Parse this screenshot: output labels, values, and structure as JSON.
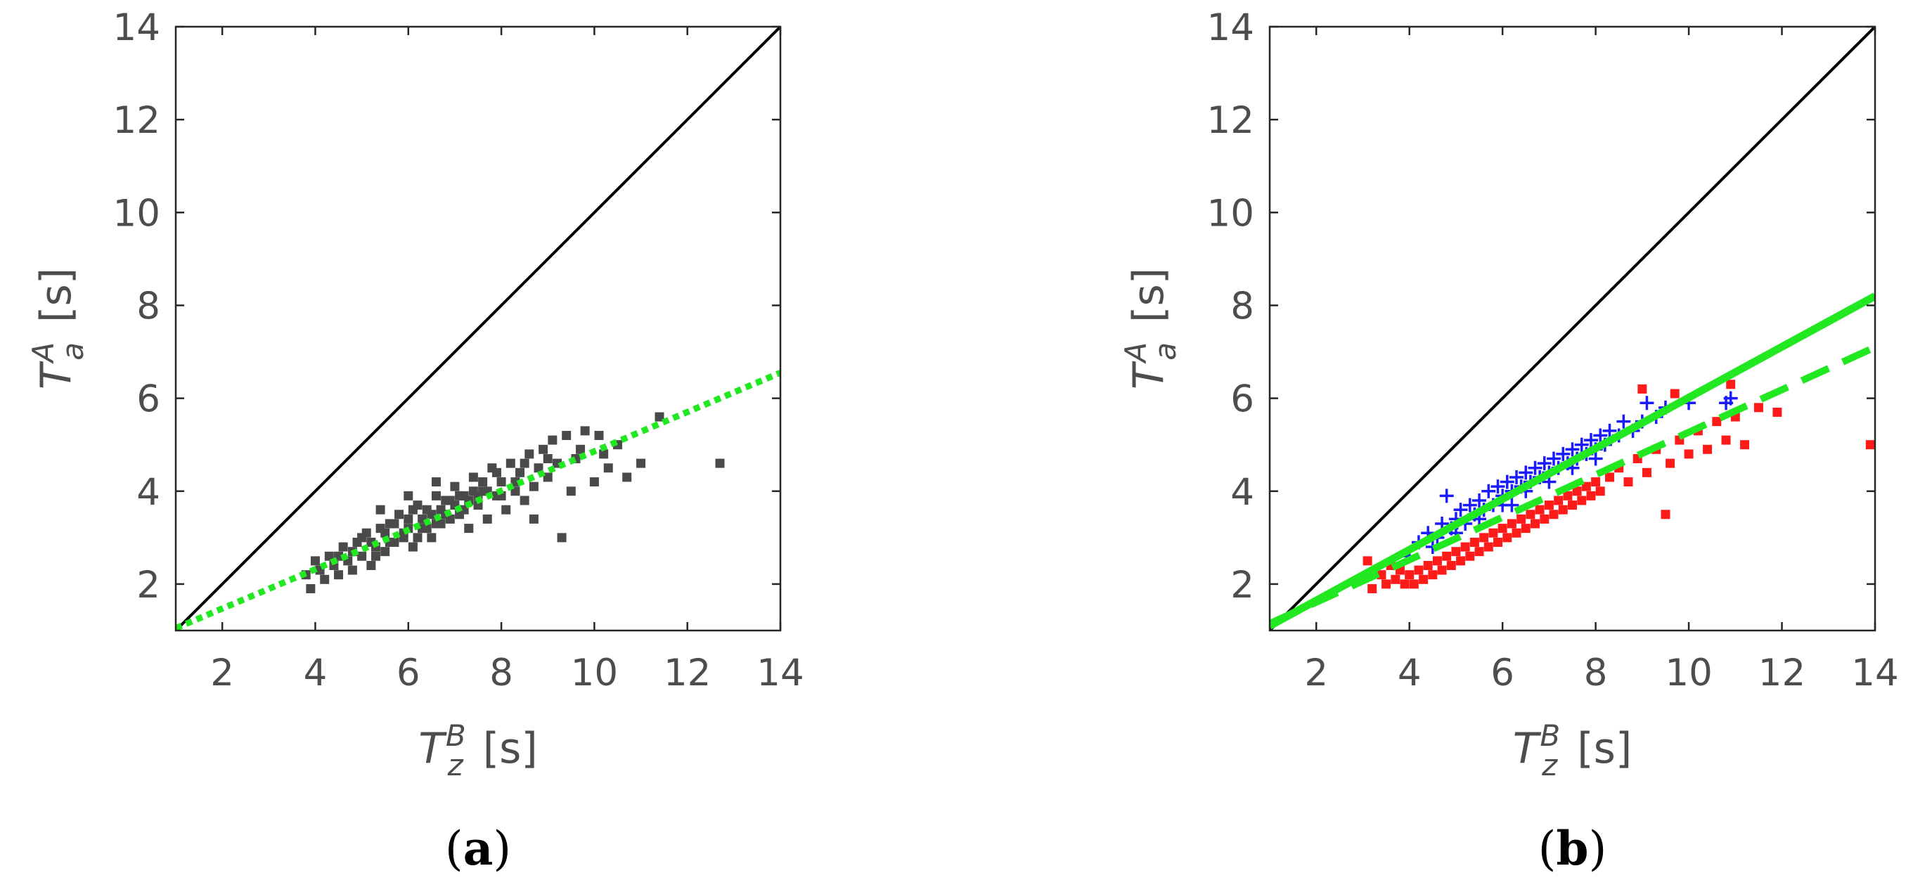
{
  "chart_data": [
    {
      "panel": "(a)",
      "panel_letter": "a",
      "type": "scatter",
      "xlabel": {
        "symbol": "T",
        "subscript": "z",
        "superscript": "B",
        "unit": "[s]"
      },
      "ylabel": {
        "symbol": "T",
        "subscript": "a",
        "superscript": "A",
        "unit": "[s]"
      },
      "xlim": [
        1,
        14
      ],
      "ylim": [
        1,
        14
      ],
      "xticks": [
        "2",
        "4",
        "6",
        "8",
        "10",
        "12",
        "14"
      ],
      "yticks": [
        "2",
        "4",
        "6",
        "8",
        "10",
        "12",
        "14"
      ],
      "grid": false,
      "lines": [
        {
          "style": "solid",
          "color": "#000000",
          "x": [
            1,
            14
          ],
          "y": [
            1,
            14
          ]
        },
        {
          "style": "dotted",
          "color": "#22e822",
          "x": [
            1,
            14
          ],
          "y": [
            1.05,
            6.55
          ]
        }
      ],
      "series": [
        {
          "marker": "square",
          "color": "#4a4a4a",
          "points": [
            [
              3.8,
              2.2
            ],
            [
              3.9,
              1.9
            ],
            [
              4.0,
              2.5
            ],
            [
              4.1,
              2.3
            ],
            [
              4.2,
              2.1
            ],
            [
              4.3,
              2.6
            ],
            [
              4.4,
              2.4
            ],
            [
              4.5,
              2.2
            ],
            [
              4.6,
              2.8
            ],
            [
              4.7,
              2.5
            ],
            [
              4.8,
              2.3
            ],
            [
              4.9,
              2.9
            ],
            [
              5.0,
              2.6
            ],
            [
              5.1,
              3.1
            ],
            [
              5.2,
              2.4
            ],
            [
              5.3,
              2.8
            ],
            [
              5.4,
              3.2
            ],
            [
              5.5,
              2.7
            ],
            [
              5.6,
              3.3
            ],
            [
              5.7,
              2.9
            ],
            [
              5.8,
              3.5
            ],
            [
              5.9,
              3.0
            ],
            [
              6.0,
              3.4
            ],
            [
              6.1,
              2.8
            ],
            [
              6.2,
              3.7
            ],
            [
              6.3,
              3.2
            ],
            [
              6.4,
              3.6
            ],
            [
              6.5,
              3.0
            ],
            [
              6.6,
              3.9
            ],
            [
              6.7,
              3.3
            ],
            [
              6.8,
              3.8
            ],
            [
              6.9,
              3.4
            ],
            [
              7.0,
              4.1
            ],
            [
              7.1,
              3.5
            ],
            [
              7.2,
              3.9
            ],
            [
              7.3,
              3.2
            ],
            [
              7.4,
              4.3
            ],
            [
              7.5,
              3.7
            ],
            [
              7.6,
              4.0
            ],
            [
              7.7,
              3.4
            ],
            [
              7.8,
              4.5
            ],
            [
              7.9,
              3.9
            ],
            [
              8.0,
              4.2
            ],
            [
              8.1,
              3.6
            ],
            [
              8.2,
              4.6
            ],
            [
              8.3,
              4.0
            ],
            [
              8.4,
              4.4
            ],
            [
              8.5,
              3.8
            ],
            [
              8.6,
              4.8
            ],
            [
              8.7,
              4.1
            ],
            [
              8.8,
              4.5
            ],
            [
              8.9,
              4.9
            ],
            [
              9.0,
              4.3
            ],
            [
              9.1,
              5.1
            ],
            [
              9.2,
              4.6
            ],
            [
              9.4,
              5.2
            ],
            [
              9.5,
              4.0
            ],
            [
              9.6,
              4.7
            ],
            [
              9.8,
              5.3
            ],
            [
              10.0,
              4.2
            ],
            [
              10.2,
              4.8
            ],
            [
              10.5,
              5.0
            ],
            [
              10.7,
              4.3
            ],
            [
              11.0,
              4.6
            ],
            [
              11.4,
              5.6
            ],
            [
              12.7,
              4.6
            ],
            [
              5.0,
              3.0
            ],
            [
              5.5,
              3.1
            ],
            [
              6.0,
              3.2
            ],
            [
              6.2,
              3.0
            ],
            [
              6.5,
              3.5
            ],
            [
              6.7,
              3.6
            ],
            [
              7.0,
              3.7
            ],
            [
              7.2,
              3.6
            ],
            [
              7.5,
              3.9
            ],
            [
              7.7,
              4.0
            ],
            [
              5.3,
              2.6
            ],
            [
              5.6,
              2.9
            ],
            [
              5.9,
              3.1
            ],
            [
              6.3,
              3.4
            ],
            [
              6.6,
              3.3
            ],
            [
              6.9,
              3.8
            ],
            [
              7.3,
              3.8
            ],
            [
              7.6,
              4.2
            ],
            [
              8.0,
              3.9
            ],
            [
              8.3,
              4.2
            ],
            [
              4.5,
              2.6
            ],
            [
              4.8,
              2.7
            ],
            [
              5.2,
              2.9
            ],
            [
              5.7,
              3.3
            ],
            [
              6.1,
              3.6
            ],
            [
              6.4,
              3.2
            ],
            [
              6.8,
              3.5
            ],
            [
              7.1,
              3.9
            ],
            [
              7.4,
              4.0
            ],
            [
              7.9,
              4.4
            ],
            [
              9.3,
              3.0
            ],
            [
              8.7,
              3.4
            ],
            [
              9.0,
              4.7
            ],
            [
              8.5,
              4.6
            ],
            [
              9.7,
              4.9
            ],
            [
              10.1,
              5.2
            ],
            [
              10.3,
              4.5
            ],
            [
              5.4,
              3.6
            ],
            [
              6.0,
              3.9
            ],
            [
              6.6,
              4.2
            ]
          ]
        }
      ]
    },
    {
      "panel": "(b)",
      "panel_letter": "b",
      "type": "scatter",
      "xlabel": {
        "symbol": "T",
        "subscript": "z",
        "superscript": "B",
        "unit": "[s]"
      },
      "ylabel": {
        "symbol": "T",
        "subscript": "a",
        "superscript": "A",
        "unit": "[s]"
      },
      "xlim": [
        1,
        14
      ],
      "ylim": [
        1,
        14
      ],
      "xticks": [
        "2",
        "4",
        "6",
        "8",
        "10",
        "12",
        "14"
      ],
      "yticks": [
        "2",
        "4",
        "6",
        "8",
        "10",
        "12",
        "14"
      ],
      "grid": false,
      "lines": [
        {
          "style": "solid",
          "color": "#000000",
          "x": [
            1,
            14
          ],
          "y": [
            1,
            14
          ]
        },
        {
          "style": "solid",
          "color": "#22e822",
          "x": [
            1,
            14
          ],
          "y": [
            1.1,
            8.2
          ]
        },
        {
          "style": "dashed",
          "color": "#22e822",
          "x": [
            1,
            14
          ],
          "y": [
            1.15,
            7.1
          ]
        }
      ],
      "series": [
        {
          "marker": "plus",
          "color": "#1a1aff",
          "points": [
            [
              4.0,
              2.6
            ],
            [
              4.2,
              2.9
            ],
            [
              4.4,
              3.1
            ],
            [
              4.6,
              3.0
            ],
            [
              4.7,
              3.3
            ],
            [
              4.8,
              3.9
            ],
            [
              4.9,
              3.2
            ],
            [
              5.0,
              3.4
            ],
            [
              5.1,
              3.6
            ],
            [
              5.2,
              3.3
            ],
            [
              5.3,
              3.7
            ],
            [
              5.4,
              3.5
            ],
            [
              5.5,
              3.8
            ],
            [
              5.6,
              3.6
            ],
            [
              5.7,
              4.0
            ],
            [
              5.8,
              3.7
            ],
            [
              5.9,
              4.1
            ],
            [
              6.0,
              3.9
            ],
            [
              6.1,
              4.2
            ],
            [
              6.2,
              4.0
            ],
            [
              6.3,
              4.3
            ],
            [
              6.4,
              4.1
            ],
            [
              6.5,
              4.4
            ],
            [
              6.6,
              4.2
            ],
            [
              6.7,
              4.5
            ],
            [
              6.8,
              4.3
            ],
            [
              6.9,
              4.6
            ],
            [
              7.0,
              4.4
            ],
            [
              7.1,
              4.7
            ],
            [
              7.2,
              4.5
            ],
            [
              7.3,
              4.8
            ],
            [
              7.4,
              4.6
            ],
            [
              7.5,
              4.9
            ],
            [
              7.6,
              4.7
            ],
            [
              7.7,
              5.0
            ],
            [
              7.8,
              4.8
            ],
            [
              7.9,
              5.1
            ],
            [
              8.0,
              4.9
            ],
            [
              8.1,
              5.2
            ],
            [
              8.2,
              5.0
            ],
            [
              8.3,
              5.3
            ],
            [
              8.5,
              5.2
            ],
            [
              8.6,
              5.5
            ],
            [
              8.8,
              5.3
            ],
            [
              9.0,
              5.5
            ],
            [
              9.1,
              5.9
            ],
            [
              9.3,
              5.6
            ],
            [
              9.5,
              5.8
            ],
            [
              10.0,
              5.9
            ],
            [
              10.9,
              6.0
            ],
            [
              10.8,
              5.9
            ],
            [
              5.0,
              3.1
            ],
            [
              5.5,
              3.4
            ],
            [
              6.0,
              3.7
            ],
            [
              6.5,
              4.0
            ],
            [
              7.0,
              4.2
            ],
            [
              7.5,
              4.5
            ],
            [
              8.0,
              4.7
            ],
            [
              4.5,
              2.8
            ],
            [
              6.2,
              3.7
            ]
          ]
        },
        {
          "marker": "square",
          "color": "#ff1a1a",
          "points": [
            [
              3.1,
              2.5
            ],
            [
              3.2,
              1.9
            ],
            [
              3.4,
              2.2
            ],
            [
              3.5,
              2.0
            ],
            [
              3.6,
              2.4
            ],
            [
              3.7,
              2.1
            ],
            [
              3.8,
              2.3
            ],
            [
              3.9,
              2.0
            ],
            [
              4.0,
              2.2
            ],
            [
              4.1,
              2.0
            ],
            [
              4.2,
              2.3
            ],
            [
              4.3,
              2.1
            ],
            [
              4.4,
              2.4
            ],
            [
              4.5,
              2.2
            ],
            [
              4.6,
              2.5
            ],
            [
              4.7,
              2.3
            ],
            [
              4.8,
              2.6
            ],
            [
              4.9,
              2.4
            ],
            [
              5.0,
              2.7
            ],
            [
              5.1,
              2.5
            ],
            [
              5.2,
              2.8
            ],
            [
              5.3,
              2.6
            ],
            [
              5.4,
              2.9
            ],
            [
              5.5,
              2.7
            ],
            [
              5.6,
              3.0
            ],
            [
              5.7,
              2.8
            ],
            [
              5.8,
              3.1
            ],
            [
              5.9,
              2.9
            ],
            [
              6.0,
              3.2
            ],
            [
              6.1,
              3.0
            ],
            [
              6.2,
              3.3
            ],
            [
              6.3,
              3.1
            ],
            [
              6.4,
              3.4
            ],
            [
              6.5,
              3.2
            ],
            [
              6.6,
              3.5
            ],
            [
              6.7,
              3.3
            ],
            [
              6.8,
              3.6
            ],
            [
              6.9,
              3.4
            ],
            [
              7.0,
              3.7
            ],
            [
              7.1,
              3.5
            ],
            [
              7.2,
              3.8
            ],
            [
              7.3,
              3.6
            ],
            [
              7.4,
              3.9
            ],
            [
              7.5,
              3.7
            ],
            [
              7.6,
              4.0
            ],
            [
              7.7,
              3.8
            ],
            [
              7.8,
              4.1
            ],
            [
              7.9,
              3.9
            ],
            [
              8.0,
              4.2
            ],
            [
              8.1,
              4.0
            ],
            [
              8.3,
              4.3
            ],
            [
              8.5,
              4.5
            ],
            [
              8.7,
              4.2
            ],
            [
              8.9,
              4.7
            ],
            [
              9.1,
              4.4
            ],
            [
              9.3,
              4.9
            ],
            [
              9.5,
              3.5
            ],
            [
              9.6,
              4.6
            ],
            [
              9.8,
              5.1
            ],
            [
              10.0,
              4.8
            ],
            [
              10.2,
              5.3
            ],
            [
              10.4,
              4.9
            ],
            [
              10.6,
              5.5
            ],
            [
              10.8,
              5.1
            ],
            [
              11.0,
              5.6
            ],
            [
              11.2,
              5.0
            ],
            [
              11.5,
              5.8
            ],
            [
              11.9,
              5.7
            ],
            [
              13.9,
              5.0
            ],
            [
              9.7,
              6.1
            ],
            [
              10.9,
              6.3
            ],
            [
              9.0,
              6.2
            ]
          ]
        }
      ]
    }
  ]
}
